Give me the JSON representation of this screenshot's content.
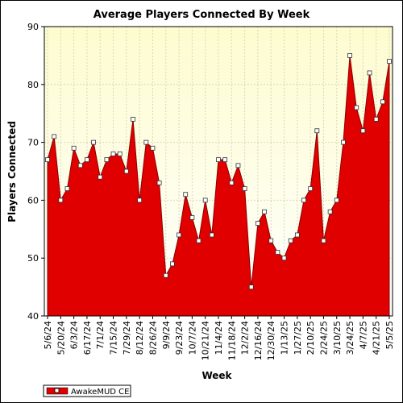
{
  "chart_data": {
    "type": "area",
    "title": "Average Players Connected By Week",
    "xlabel": "Week",
    "ylabel": "Players Connected",
    "ylim": [
      40,
      90
    ],
    "yticks": [
      40,
      50,
      60,
      70,
      80,
      90
    ],
    "grid": true,
    "legend_position": "bottom-left",
    "colors": {
      "series": "#e00000",
      "outline": "#8b0000",
      "bg_top": "#fdfccf",
      "bg_bottom": "#ffffff",
      "grid": "#d8d8b8"
    },
    "x_tick_labels": [
      "5/6/24",
      "5/20/24",
      "6/3/24",
      "6/17/24",
      "7/1/24",
      "7/15/24",
      "7/29/24",
      "8/12/24",
      "8/26/24",
      "9/9/24",
      "9/23/24",
      "10/7/24",
      "10/21/24",
      "11/4/24",
      "11/18/24",
      "12/2/24",
      "12/16/24",
      "12/30/24",
      "1/13/25",
      "1/27/25",
      "2/10/25",
      "2/24/25",
      "3/10/25",
      "3/24/25",
      "4/7/25",
      "4/21/25",
      "5/5/25"
    ],
    "series": [
      {
        "name": "AwakeMUD CE",
        "values": [
          67,
          71,
          60,
          62,
          69,
          66,
          67,
          70,
          64,
          67,
          68,
          68,
          65,
          74,
          60,
          70,
          69,
          63,
          47,
          49,
          54,
          61,
          57,
          53,
          60,
          54,
          67,
          67,
          63,
          66,
          62,
          45,
          56,
          58,
          53,
          51,
          50,
          53,
          54,
          60,
          62,
          72,
          53,
          58,
          60,
          70,
          85,
          76,
          72,
          82,
          74,
          77,
          84
        ]
      }
    ]
  }
}
